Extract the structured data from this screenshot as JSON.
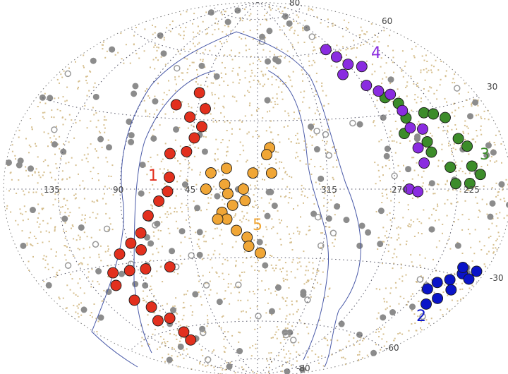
{
  "chart_data": {
    "type": "scatter",
    "projection": "hammer-aitoff",
    "coordinates": "galactic longitude / latitude (deg)",
    "grid": true,
    "longitude_ticks": [
      "135",
      "90",
      "45",
      "315",
      "270",
      "225"
    ],
    "latitude_ticks": [
      "80",
      "60",
      "30",
      "-30",
      "-60",
      "-80"
    ],
    "colors": {
      "1": "#e2301e",
      "2": "#0a14c8",
      "3": "#3c8c2a",
      "4": "#8a2ce0",
      "5": "#f0a636",
      "background_dots": "#d6bf8e",
      "field_sources": "#8c8c8c",
      "contour": "#4a5aa8"
    },
    "groups": [
      {
        "label": "1",
        "color": "#e2301e",
        "points": [
          [
            47,
            42
          ],
          [
            62,
            36
          ],
          [
            39,
            35
          ],
          [
            49,
            31
          ],
          [
            39,
            27
          ],
          [
            43,
            22
          ],
          [
            58,
            15
          ],
          [
            47,
            16
          ],
          [
            57,
            5
          ],
          [
            58,
            -1
          ],
          [
            64,
            -5
          ],
          [
            72,
            -11
          ],
          [
            79,
            -18
          ],
          [
            88,
            -22
          ],
          [
            99,
            -26
          ],
          [
            82,
            -25
          ],
          [
            111,
            -33
          ],
          [
            97,
            -33
          ],
          [
            84,
            -33
          ],
          [
            65,
            -33
          ],
          [
            109,
            -45
          ],
          [
            99,
            -49
          ],
          [
            105,
            -55
          ],
          [
            91,
            -55
          ],
          [
            91,
            -62
          ],
          [
            94,
            -66
          ],
          [
            115,
            -38
          ]
        ]
      },
      {
        "label": "2",
        "color": "#0a14c8",
        "points": [
          [
            188,
            -27
          ],
          [
            199,
            -29
          ],
          [
            206,
            -32
          ],
          [
            215,
            -34
          ],
          [
            219,
            -37
          ],
          [
            203,
            -39
          ],
          [
            198,
            -35
          ],
          [
            190,
            -30
          ],
          [
            208,
            -42
          ],
          [
            202,
            -27
          ]
        ]
      },
      {
        "label": "3",
        "color": "#3c8c2a",
        "points": [
          [
            259,
            37
          ],
          [
            251,
            34
          ],
          [
            235,
            29
          ],
          [
            228,
            28
          ],
          [
            220,
            26
          ],
          [
            251,
            28
          ],
          [
            257,
            22
          ],
          [
            217,
            18
          ],
          [
            212,
            15
          ],
          [
            242,
            18
          ],
          [
            241,
            14
          ],
          [
            229,
            8
          ],
          [
            212,
            8
          ],
          [
            206,
            5
          ],
          [
            215,
            2
          ],
          [
            226,
            2
          ]
        ]
      },
      {
        "label": "4",
        "color": "#8a2ce0",
        "points": [
          [
            279,
            61
          ],
          [
            275,
            57
          ],
          [
            270,
            53
          ],
          [
            259,
            51
          ],
          [
            282,
            49
          ],
          [
            268,
            43
          ],
          [
            261,
            40
          ],
          [
            253,
            38
          ],
          [
            251,
            31
          ],
          [
            251,
            24
          ],
          [
            242,
            23
          ],
          [
            250,
            16
          ],
          [
            248,
            10
          ],
          [
            260,
            0
          ],
          [
            254,
            -1
          ]
        ]
      },
      {
        "label": "5",
        "color": "#f0a636",
        "points": [
          [
            352,
            18
          ],
          [
            354,
            15
          ],
          [
            3,
            7
          ],
          [
            351,
            7
          ],
          [
            20,
            9
          ],
          [
            33,
            0
          ],
          [
            21,
            2
          ],
          [
            19,
            -2
          ],
          [
            9,
            0
          ],
          [
            8,
            -5
          ],
          [
            16,
            -7
          ],
          [
            23,
            -10
          ],
          [
            20,
            -13
          ],
          [
            26,
            -13
          ],
          [
            14,
            -18
          ],
          [
            7,
            -21
          ],
          [
            6,
            -25
          ],
          [
            358,
            -28
          ],
          [
            30,
            7
          ]
        ]
      }
    ]
  }
}
